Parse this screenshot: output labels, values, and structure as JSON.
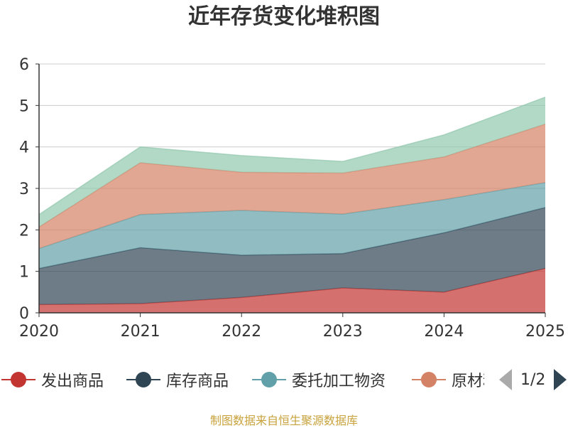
{
  "chart_data": {
    "type": "area",
    "stacked": true,
    "title": "近年存货变化堆积图",
    "ylabel": "",
    "x": [
      "2020",
      "2021",
      "2022",
      "2023",
      "2024",
      "2025"
    ],
    "ylim": [
      0,
      6
    ],
    "yticks": [
      "0",
      "1",
      "2",
      "3",
      "4",
      "5",
      "6"
    ],
    "grid": true,
    "legend_position": "bottom",
    "series": [
      {
        "name": "发出商品",
        "values": [
          0.2,
          0.22,
          0.37,
          0.6,
          0.5,
          1.07
        ],
        "color": "#c23531"
      },
      {
        "name": "库存商品",
        "values": [
          0.87,
          1.35,
          1.02,
          0.83,
          1.43,
          1.47
        ],
        "color": "#2f4554"
      },
      {
        "name": "委托加工物资",
        "values": [
          0.48,
          0.8,
          1.08,
          0.95,
          0.8,
          0.6
        ],
        "color": "#61a0a8"
      },
      {
        "name": "原材料",
        "values": [
          0.52,
          1.25,
          0.92,
          0.99,
          1.03,
          1.41
        ],
        "color": "#d48265"
      },
      {
        "name": "",
        "values": [
          0.3,
          0.38,
          0.4,
          0.28,
          0.53,
          0.65
        ],
        "color": "#91c7ae"
      }
    ]
  },
  "legend": {
    "items": [
      {
        "label": "发出商品",
        "color": "#c23531",
        "icon": "circle-icon"
      },
      {
        "label": "库存商品",
        "color": "#2f4554",
        "icon": "circle-icon"
      },
      {
        "label": "委托加工物资",
        "color": "#61a0a8",
        "icon": "circle-icon"
      },
      {
        "label": "原材料",
        "color": "#d48265",
        "icon": "circle-icon"
      }
    ],
    "page_text": "1/2"
  },
  "source": "制图数据来自恒生聚源数据库"
}
